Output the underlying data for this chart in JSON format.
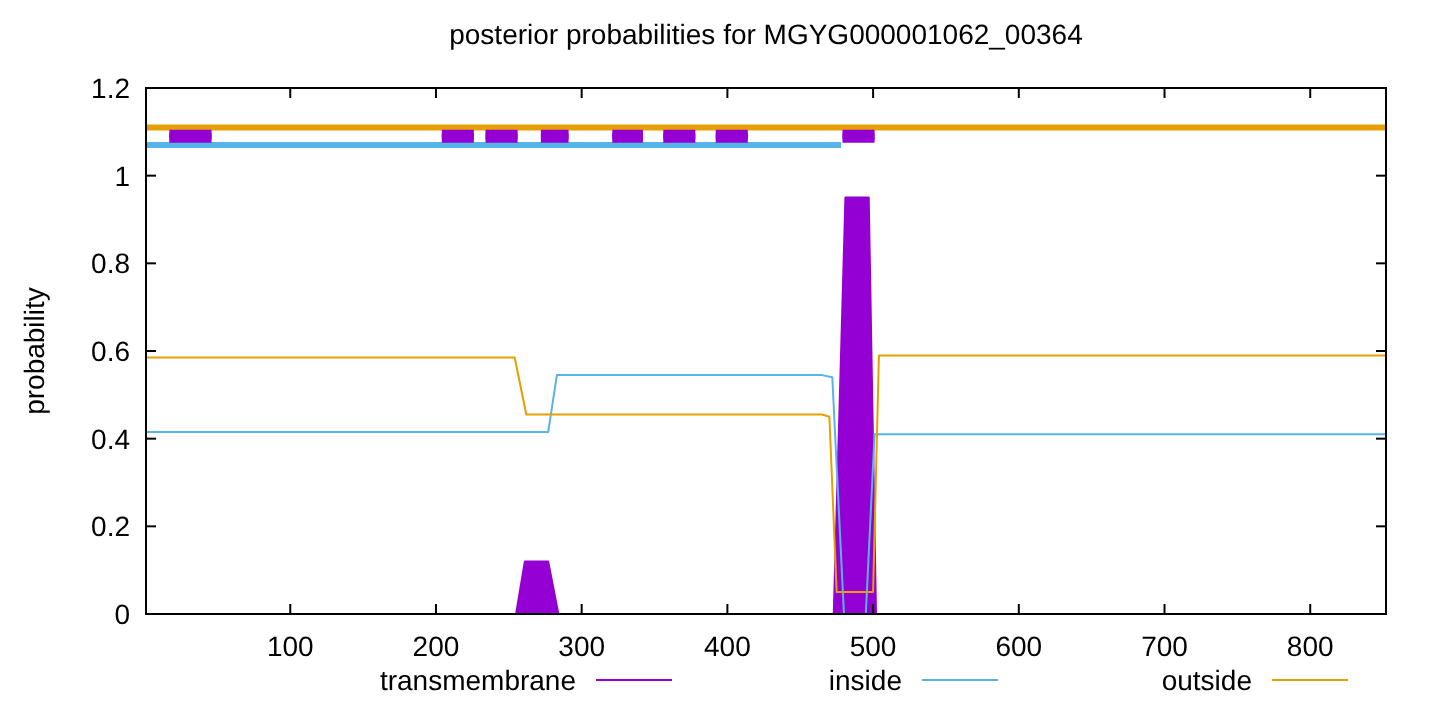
{
  "chart_data": {
    "type": "line",
    "title": "posterior probabilities for MGYG000001062_00364",
    "ylabel": "probability",
    "xlim": [
      1,
      852
    ],
    "ylim": [
      0,
      1.2
    ],
    "xticks": [
      100,
      200,
      300,
      400,
      500,
      600,
      700,
      800
    ],
    "yticks": [
      0,
      0.2,
      0.4,
      0.6,
      0.8,
      1,
      1.2
    ],
    "grid": false,
    "legend": "bottom",
    "marker": "none",
    "line_style": "solid",
    "series": [
      {
        "name": "transmembrane",
        "type": "area",
        "color": "#9400d3",
        "x": [
          1,
          250,
          255,
          261,
          277,
          284,
          290,
          470,
          473,
          481,
          497,
          502,
          510,
          852
        ],
        "values": [
          0,
          0,
          0,
          0.12,
          0.12,
          0,
          0,
          0,
          0,
          0.95,
          0.95,
          0,
          0,
          0
        ]
      },
      {
        "name": "inside",
        "color": "#56b4e9",
        "x": [
          1,
          270,
          277,
          283,
          465,
          472,
          480,
          495,
          501,
          852
        ],
        "values": [
          0.415,
          0.415,
          0.415,
          0.545,
          0.545,
          0.54,
          0,
          0,
          0.41,
          0.41
        ]
      },
      {
        "name": "outside",
        "color": "#e69f00",
        "x": [
          1,
          250,
          254,
          262,
          465,
          470,
          475,
          480,
          500,
          504,
          852
        ],
        "values": [
          0.585,
          0.585,
          0.585,
          0.455,
          0.455,
          0.45,
          0.05,
          0.05,
          0.05,
          0.59,
          0.59
        ]
      },
      {
        "color": "#e69f00",
        "x": [
          1,
          852
        ],
        "values": [
          1.11,
          1.11
        ]
      },
      {
        "color": "#56b4e9",
        "x": [
          1,
          478
        ],
        "values": [
          1.07,
          1.07
        ]
      },
      {
        "color": "#9400d3",
        "x": [
          17,
          46,
          null,
          204,
          226,
          null,
          234,
          256,
          null,
          272,
          291,
          null,
          321,
          342,
          null,
          356,
          378,
          null,
          392,
          414,
          null,
          479,
          501
        ],
        "values": [
          1.09,
          1.09,
          null,
          1.09,
          1.09,
          null,
          1.09,
          1.09,
          null,
          1.09,
          1.09,
          null,
          1.09,
          1.09,
          null,
          1.09,
          1.09,
          null,
          1.09,
          1.09,
          null,
          1.09,
          1.09
        ],
        "lower": [
          1.075,
          1.075,
          null,
          1.075,
          1.075,
          null,
          1.075,
          1.075,
          null,
          1.075,
          1.075,
          null,
          1.075,
          1.075,
          null,
          1.075,
          1.075,
          null,
          1.075,
          1.075,
          null,
          1.075,
          1.075
        ],
        "upper": [
          1.105,
          1.105,
          null,
          1.105,
          1.105,
          null,
          1.105,
          1.105,
          null,
          1.105,
          1.105,
          null,
          1.105,
          1.105,
          null,
          1.105,
          1.105,
          null,
          1.105,
          1.105,
          null,
          1.105,
          1.105
        ]
      }
    ]
  }
}
